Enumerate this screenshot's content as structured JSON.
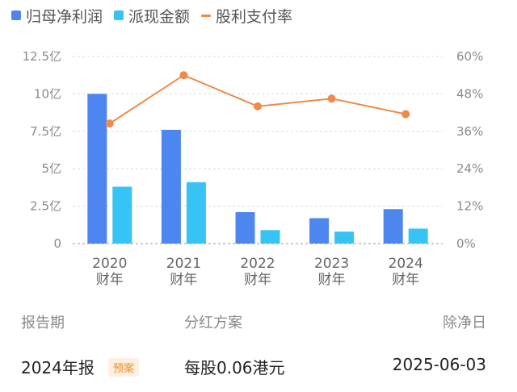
{
  "legend": {
    "items": [
      {
        "label": "归母净利润",
        "color": "#4e86f0",
        "shape": "square"
      },
      {
        "label": "派现金额",
        "color": "#37c3f3",
        "shape": "square"
      },
      {
        "label": "股利支付率",
        "color": "#ee8a4b",
        "shape": "line"
      }
    ]
  },
  "chart_data": {
    "type": "bar",
    "categories": [
      "2020\n财年",
      "2021\n财年",
      "2022\n财年",
      "2023\n财年",
      "2024\n财年"
    ],
    "series": [
      {
        "name": "归母净利润",
        "type": "bar",
        "axis": "left",
        "color": "#4e86f0",
        "values": [
          10.0,
          7.6,
          2.1,
          1.7,
          2.3
        ]
      },
      {
        "name": "派现金额",
        "type": "bar",
        "axis": "left",
        "color": "#37c3f3",
        "values": [
          3.8,
          4.1,
          0.9,
          0.8,
          1.0
        ]
      },
      {
        "name": "股利支付率",
        "type": "line",
        "axis": "right",
        "color": "#ee8a4b",
        "values": [
          38.5,
          54.0,
          44.0,
          46.5,
          41.5
        ]
      }
    ],
    "left_axis": {
      "ticks": [
        "0",
        "2.5亿",
        "5亿",
        "7.5亿",
        "10亿",
        "12.5亿"
      ],
      "tick_values": [
        0,
        2.5,
        5,
        7.5,
        10,
        12.5
      ],
      "ylim": [
        0,
        12.5
      ]
    },
    "right_axis": {
      "ticks": [
        "0%",
        "12%",
        "24%",
        "36%",
        "48%",
        "60%"
      ],
      "tick_values": [
        0,
        12,
        24,
        36,
        48,
        60
      ],
      "ylim": [
        0,
        60
      ]
    },
    "grid": true
  },
  "table": {
    "headers": {
      "period": "报告期",
      "plan": "分红方案",
      "date": "除净日"
    },
    "rows": [
      {
        "period": "2024年报",
        "badge": "预案",
        "plan": "每股0.06港元",
        "date": "2025-06-03"
      }
    ]
  },
  "colors": {
    "badge_text": "#f08a24",
    "badge_bg": "#fdf0e3"
  }
}
